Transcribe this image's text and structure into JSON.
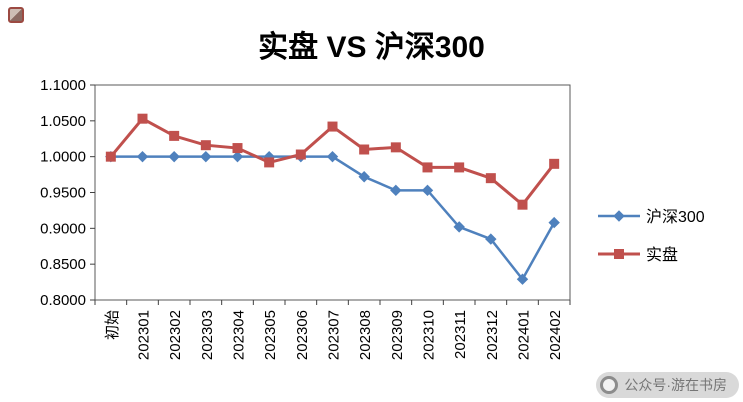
{
  "title": "实盘 VS 沪深300",
  "watermark": {
    "text": "公众号·游在书房",
    "icon": "round-logo-icon"
  },
  "corner_icon": "seal-logo-icon",
  "chart_data": {
    "type": "line",
    "title": "实盘 VS 沪深300",
    "categories": [
      "初始",
      "202301",
      "202302",
      "202303",
      "202304",
      "202305",
      "202306",
      "202307",
      "202308",
      "202309",
      "202310",
      "202311",
      "202312",
      "202401",
      "202402"
    ],
    "series": [
      {
        "name": "沪深300",
        "marker": "diamond",
        "color": "#4F81BD",
        "values": [
          1.0,
          1.0,
          1.0,
          1.0,
          1.0,
          1.0,
          1.0,
          1.0,
          0.972,
          0.953,
          0.953,
          0.902,
          0.885,
          0.829,
          0.908
        ]
      },
      {
        "name": "实盘",
        "marker": "square",
        "color": "#C0504D",
        "values": [
          1.0,
          1.053,
          1.029,
          1.016,
          1.012,
          0.992,
          1.003,
          1.042,
          1.01,
          1.013,
          0.985,
          0.985,
          0.97,
          0.933,
          0.99
        ]
      }
    ],
    "ylim": [
      0.8,
      1.1
    ],
    "ytick_step": 0.05,
    "ytick_labels": [
      "0.8000",
      "0.8500",
      "0.9000",
      "0.9500",
      "1.0000",
      "1.0500",
      "1.1000"
    ],
    "xlabel": "",
    "ylabel": "",
    "grid": false,
    "legend_position": "right"
  }
}
